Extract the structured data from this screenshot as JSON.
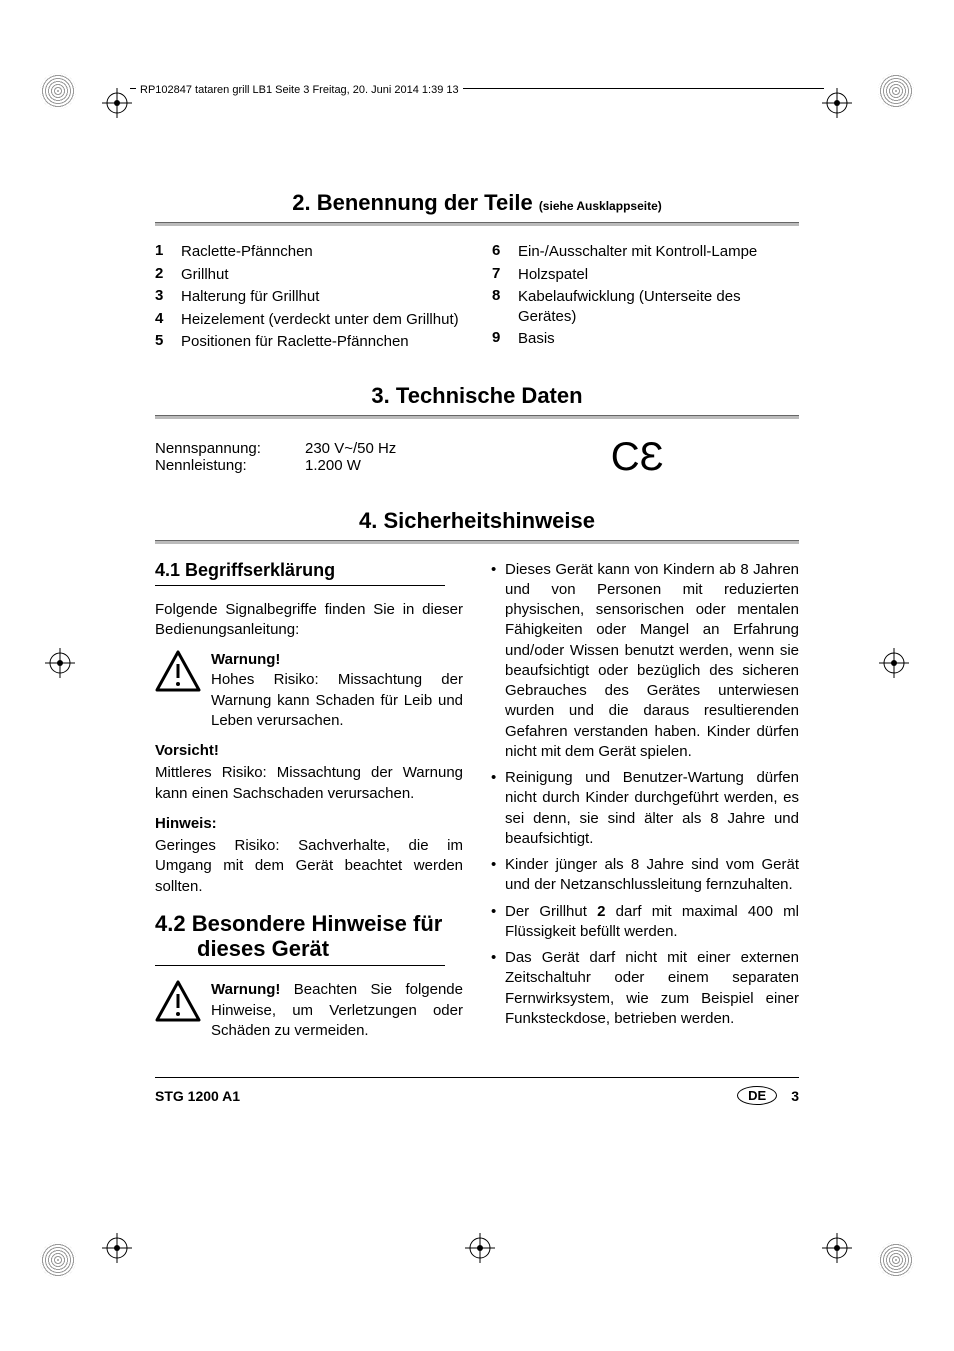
{
  "header_text": "RP102847 tataren grill LB1  Seite 3  Freitag, 20. Juni 2014  1:39 13",
  "sections": {
    "parts": {
      "number": "2.",
      "title": "Benennung der Teile",
      "subtitle": "(siehe Ausklappseite)",
      "left": [
        {
          "num": "1",
          "label": "Raclette-Pfännchen"
        },
        {
          "num": "2",
          "label": "Grillhut"
        },
        {
          "num": "3",
          "label": "Halterung für Grillhut"
        },
        {
          "num": "4",
          "label": "Heizelement (verdeckt unter dem Grillhut)"
        },
        {
          "num": "5",
          "label": "Positionen für Raclette-Pfännchen"
        }
      ],
      "right": [
        {
          "num": "6",
          "label": "Ein-/Ausschalter mit Kontroll-Lampe"
        },
        {
          "num": "7",
          "label": "Holzspatel"
        },
        {
          "num": "8",
          "label": "Kabelaufwicklung (Unterseite des Gerätes)"
        },
        {
          "num": "9",
          "label": "Basis"
        }
      ]
    },
    "tech": {
      "number": "3.",
      "title": "Technische Daten",
      "rows": [
        {
          "key": "Nennspannung:",
          "val": "230 V~/50 Hz"
        },
        {
          "key": "Nennleistung:",
          "val": "1.200 W"
        }
      ]
    },
    "safety": {
      "number": "4.",
      "title": "Sicherheitshinweise"
    }
  },
  "subheads": {
    "s41": "4.1 Begriffserklärung",
    "s42_l1": "4.2  Besondere Hinweise für",
    "s42_l2": "dieses Gerät"
  },
  "body": {
    "intro41": "Folgende Signalbegriffe finden Sie in dieser Bedienungsanleitung:",
    "warnung_label": "Warnung!",
    "warnung_text": "Hohes Risiko: Missachtung der Warnung kann Schaden für Leib und Leben verursachen.",
    "vorsicht_label": "Vorsicht!",
    "vorsicht_text": "Mittleres Risiko: Missachtung der Warnung kann einen Sachschaden verursachen.",
    "hinweis_label": "Hinweis:",
    "hinweis_text": "Geringes Risiko: Sachverhalte, die im Umgang mit dem Gerät beachtet werden sollten.",
    "warn42_bold": "Warnung!",
    "warn42_text": " Beachten Sie folgende Hinweise, um Verletzungen oder Schäden zu vermeiden."
  },
  "bullets_right": [
    "Dieses Gerät kann von Kindern ab 8 Jahren und von Personen mit reduzierten physischen, sensorischen oder mentalen Fähigkeiten oder Mangel an Erfahrung und/oder Wissen benutzt werden, wenn sie beaufsichtigt oder bezüglich des sicheren Gebrauches des Gerätes unterwiesen wurden und die daraus resultierenden Gefahren verstanden haben. Kinder dürfen nicht mit dem Gerät spielen.",
    "Reinigung und Benutzer-Wartung dürfen nicht durch Kinder durchgeführt werden, es sei denn, sie sind älter als 8 Jahre und beaufsichtigt.",
    "Kinder jünger als 8 Jahre sind vom Gerät und der Netzanschlussleitung fernzuhalten.",
    {
      "pre": "Der Grillhut ",
      "bold": "2",
      "post": " darf mit maximal 400 ml Flüssigkeit befüllt werden."
    },
    "Das Gerät darf nicht mit einer externen Zeitschaltuhr oder einem separaten Fernwirksystem, wie zum Beispiel einer Funksteckdose, betrieben werden."
  ],
  "footer": {
    "model": "STG 1200 A1",
    "lang": "DE",
    "page": "3"
  },
  "colors": {
    "text": "#000000",
    "divider_top": "#666666",
    "divider_bottom": "#bbbbbb",
    "reg_gray": "#999999"
  }
}
